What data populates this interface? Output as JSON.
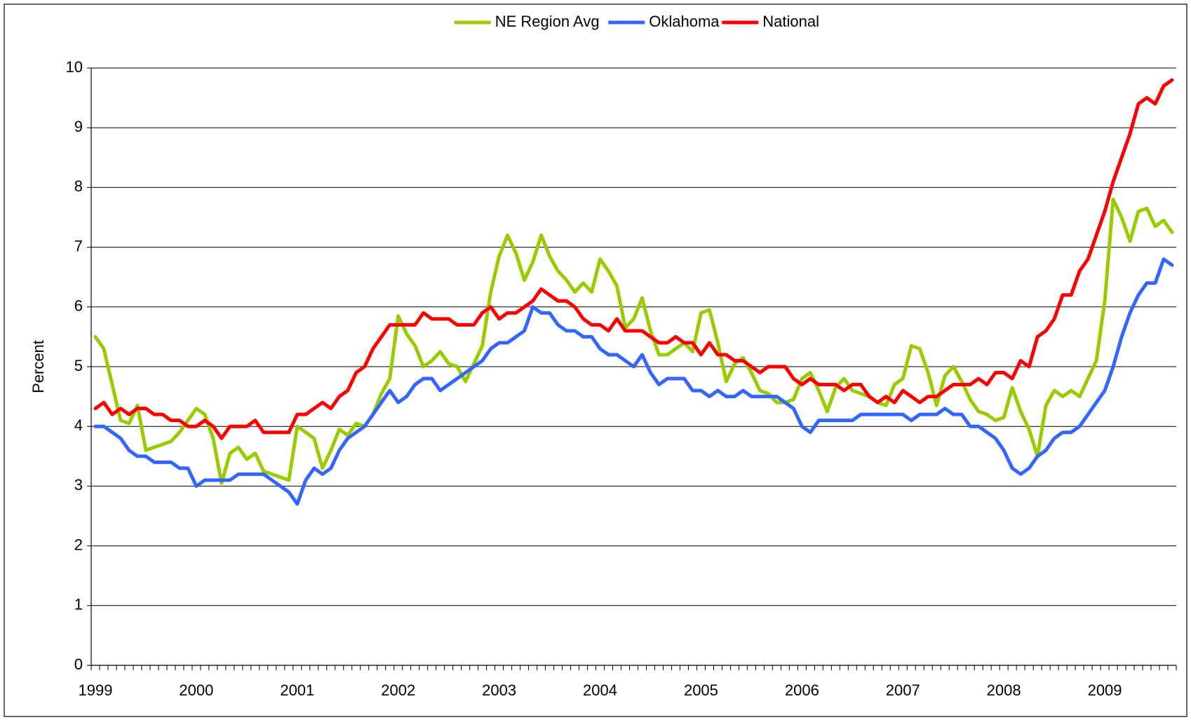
{
  "chart_data": {
    "type": "line",
    "ylabel": "Percent",
    "categories": [
      "1999",
      null,
      null,
      null,
      null,
      null,
      null,
      null,
      null,
      null,
      null,
      null,
      "2000",
      null,
      null,
      null,
      null,
      null,
      null,
      null,
      null,
      null,
      null,
      null,
      "2001",
      null,
      null,
      null,
      null,
      null,
      null,
      null,
      null,
      null,
      null,
      null,
      "2002",
      null,
      null,
      null,
      null,
      null,
      null,
      null,
      null,
      null,
      null,
      null,
      "2003",
      null,
      null,
      null,
      null,
      null,
      null,
      null,
      null,
      null,
      null,
      null,
      "2004",
      null,
      null,
      null,
      null,
      null,
      null,
      null,
      null,
      null,
      null,
      null,
      "2005",
      null,
      null,
      null,
      null,
      null,
      null,
      null,
      null,
      null,
      null,
      null,
      "2006",
      null,
      null,
      null,
      null,
      null,
      null,
      null,
      null,
      null,
      null,
      null,
      "2007",
      null,
      null,
      null,
      null,
      null,
      null,
      null,
      null,
      null,
      null,
      null,
      "2008",
      null,
      null,
      null,
      null,
      null,
      null,
      null,
      null,
      null,
      null,
      null,
      "2009",
      null,
      null,
      null,
      null,
      null,
      null,
      null,
      null
    ],
    "series": [
      {
        "name": "NE Region Avg",
        "color": "#99cc00",
        "values": [
          5.5,
          5.3,
          4.7,
          4.1,
          4.05,
          4.35,
          3.6,
          3.65,
          3.7,
          3.75,
          3.9,
          4.1,
          4.3,
          4.2,
          3.8,
          3.05,
          3.55,
          3.65,
          3.45,
          3.55,
          3.25,
          3.2,
          3.15,
          3.1,
          4.0,
          3.9,
          3.8,
          3.3,
          3.6,
          3.95,
          3.85,
          4.05,
          4.0,
          4.2,
          4.55,
          4.8,
          5.85,
          5.55,
          5.35,
          5.0,
          5.1,
          5.25,
          5.05,
          5.0,
          4.75,
          5.05,
          5.35,
          6.25,
          6.85,
          7.2,
          6.9,
          6.45,
          6.75,
          7.2,
          6.85,
          6.6,
          6.45,
          6.25,
          6.4,
          6.25,
          6.8,
          6.6,
          6.35,
          5.65,
          5.8,
          6.15,
          5.6,
          5.2,
          5.2,
          5.3,
          5.4,
          5.25,
          5.9,
          5.95,
          5.4,
          4.75,
          5.05,
          5.15,
          4.9,
          4.6,
          4.55,
          4.4,
          4.4,
          4.45,
          4.8,
          4.9,
          4.6,
          4.25,
          4.65,
          4.8,
          4.6,
          4.55,
          4.5,
          4.4,
          4.35,
          4.7,
          4.8,
          5.35,
          5.3,
          4.9,
          4.35,
          4.85,
          5.0,
          4.75,
          4.45,
          4.25,
          4.2,
          4.1,
          4.15,
          4.65,
          4.25,
          3.95,
          3.5,
          4.35,
          4.6,
          4.5,
          4.6,
          4.5,
          4.8,
          5.1,
          6.1,
          7.8,
          7.5,
          7.1,
          7.6,
          7.65,
          7.35,
          7.45,
          7.25
        ]
      },
      {
        "name": "Oklahoma",
        "color": "#3366ff",
        "values": [
          4.0,
          4.0,
          3.9,
          3.8,
          3.6,
          3.5,
          3.5,
          3.4,
          3.4,
          3.4,
          3.3,
          3.3,
          3.0,
          3.1,
          3.1,
          3.1,
          3.1,
          3.2,
          3.2,
          3.2,
          3.2,
          3.1,
          3.0,
          2.9,
          2.7,
          3.1,
          3.3,
          3.2,
          3.3,
          3.6,
          3.8,
          3.9,
          4.0,
          4.2,
          4.4,
          4.6,
          4.4,
          4.5,
          4.7,
          4.8,
          4.8,
          4.6,
          4.7,
          4.8,
          4.9,
          5.0,
          5.1,
          5.3,
          5.4,
          5.4,
          5.5,
          5.6,
          6.0,
          5.9,
          5.9,
          5.7,
          5.6,
          5.6,
          5.5,
          5.5,
          5.3,
          5.2,
          5.2,
          5.1,
          5.0,
          5.2,
          4.9,
          4.7,
          4.8,
          4.8,
          4.8,
          4.6,
          4.6,
          4.5,
          4.6,
          4.5,
          4.5,
          4.6,
          4.5,
          4.5,
          4.5,
          4.5,
          4.4,
          4.3,
          4.0,
          3.9,
          4.1,
          4.1,
          4.1,
          4.1,
          4.1,
          4.2,
          4.2,
          4.2,
          4.2,
          4.2,
          4.2,
          4.1,
          4.2,
          4.2,
          4.2,
          4.3,
          4.2,
          4.2,
          4.0,
          4.0,
          3.9,
          3.8,
          3.6,
          3.3,
          3.2,
          3.3,
          3.5,
          3.6,
          3.8,
          3.9,
          3.9,
          4.0,
          4.2,
          4.4,
          4.6,
          5.0,
          5.5,
          5.9,
          6.2,
          6.4,
          6.4,
          6.8,
          6.7
        ]
      },
      {
        "name": "National",
        "color": "#ff0000",
        "values": [
          4.3,
          4.4,
          4.2,
          4.3,
          4.2,
          4.3,
          4.3,
          4.2,
          4.2,
          4.1,
          4.1,
          4.0,
          4.0,
          4.1,
          4.0,
          3.8,
          4.0,
          4.0,
          4.0,
          4.1,
          3.9,
          3.9,
          3.9,
          3.9,
          4.2,
          4.2,
          4.3,
          4.4,
          4.3,
          4.5,
          4.6,
          4.9,
          5.0,
          5.3,
          5.5,
          5.7,
          5.7,
          5.7,
          5.7,
          5.9,
          5.8,
          5.8,
          5.8,
          5.7,
          5.7,
          5.7,
          5.9,
          6.0,
          5.8,
          5.9,
          5.9,
          6.0,
          6.1,
          6.3,
          6.2,
          6.1,
          6.1,
          6.0,
          5.8,
          5.7,
          5.7,
          5.6,
          5.8,
          5.6,
          5.6,
          5.6,
          5.5,
          5.4,
          5.4,
          5.5,
          5.4,
          5.4,
          5.2,
          5.4,
          5.2,
          5.2,
          5.1,
          5.1,
          5.0,
          4.9,
          5.0,
          5.0,
          5.0,
          4.8,
          4.7,
          4.8,
          4.7,
          4.7,
          4.7,
          4.6,
          4.7,
          4.7,
          4.5,
          4.4,
          4.5,
          4.4,
          4.6,
          4.5,
          4.4,
          4.5,
          4.5,
          4.6,
          4.7,
          4.7,
          4.7,
          4.8,
          4.7,
          4.9,
          4.9,
          4.8,
          5.1,
          5.0,
          5.5,
          5.6,
          5.8,
          6.2,
          6.2,
          6.6,
          6.8,
          7.2,
          7.6,
          8.1,
          8.5,
          8.9,
          9.4,
          9.5,
          9.4,
          9.7,
          9.8
        ]
      }
    ],
    "ylim": [
      0,
      10
    ],
    "yticks": [
      0,
      1,
      2,
      3,
      4,
      5,
      6,
      7,
      8,
      9,
      10
    ],
    "grid": true,
    "legend": "top"
  }
}
